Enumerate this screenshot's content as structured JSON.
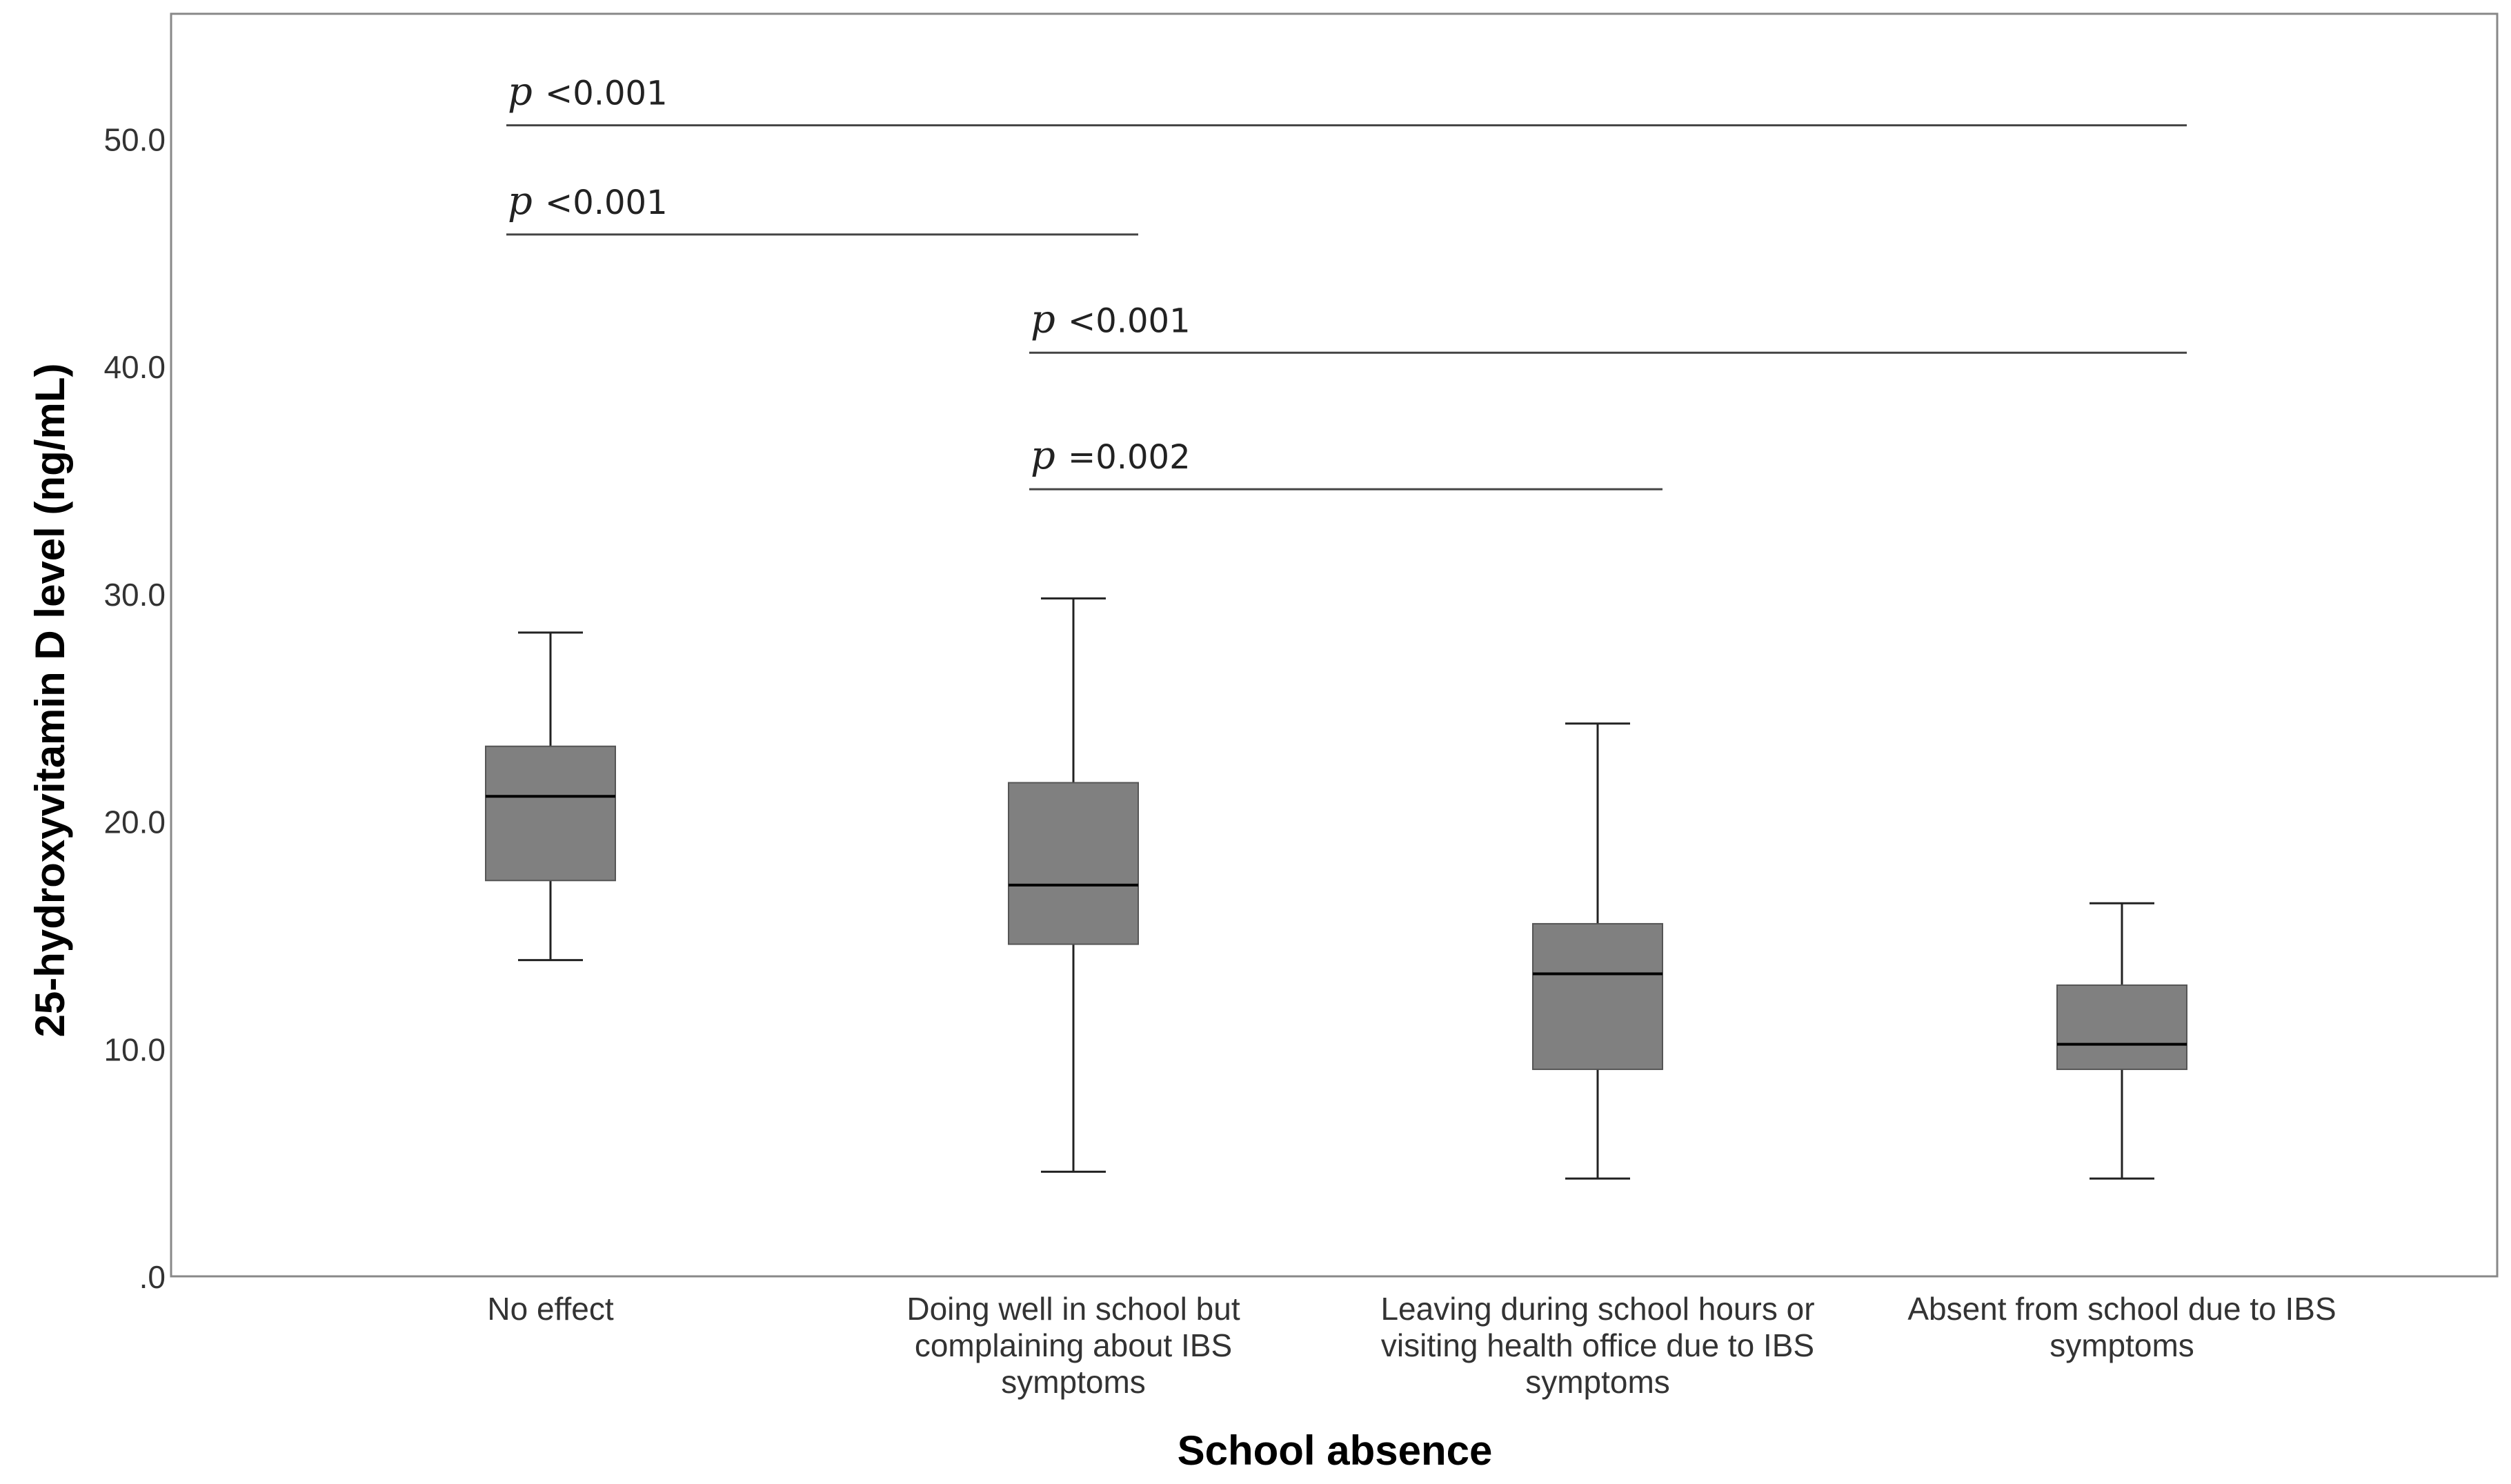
{
  "chart_data": {
    "type": "boxplot",
    "title": "",
    "xlabel": "School absence",
    "ylabel": "25-hydroxyvitamin D level (ng/mL)",
    "ylim": [
      0,
      55.5
    ],
    "yticks": [
      0,
      10,
      20,
      30,
      40,
      50
    ],
    "ytick_labels": [
      ".0",
      "10.0",
      "20.0",
      "30.0",
      "40.0",
      "50.0"
    ],
    "box_color": "#808080",
    "categories": [
      [
        "No effect"
      ],
      [
        "Doing well in school but",
        "complaining about IBS",
        "symptoms"
      ],
      [
        "Leaving during school hours or",
        "visiting health office due to IBS",
        "symptoms"
      ],
      [
        "Absent from school due to IBS",
        "symptoms"
      ]
    ],
    "boxes": [
      {
        "min": 13.9,
        "q1": 17.4,
        "median": 21.1,
        "q3": 23.3,
        "max": 28.3
      },
      {
        "min": 4.6,
        "q1": 14.6,
        "median": 17.2,
        "q3": 21.7,
        "max": 29.8
      },
      {
        "min": 4.3,
        "q1": 9.1,
        "median": 13.3,
        "q3": 15.5,
        "max": 24.3
      },
      {
        "min": 4.3,
        "q1": 9.1,
        "median": 10.2,
        "q3": 12.8,
        "max": 16.4
      }
    ],
    "annotations": [
      {
        "from": 0,
        "to": 3,
        "y": 50.6,
        "p": "p",
        "text": "<0.001"
      },
      {
        "from": 0,
        "to": 1,
        "y": 45.8,
        "p": "p",
        "text": "<0.001"
      },
      {
        "from": 1,
        "to": 3,
        "y": 40.6,
        "p": "p",
        "text": "<0.001"
      },
      {
        "from": 1,
        "to": 2,
        "y": 34.6,
        "p": "p",
        "text": "=0.002"
      }
    ]
  }
}
